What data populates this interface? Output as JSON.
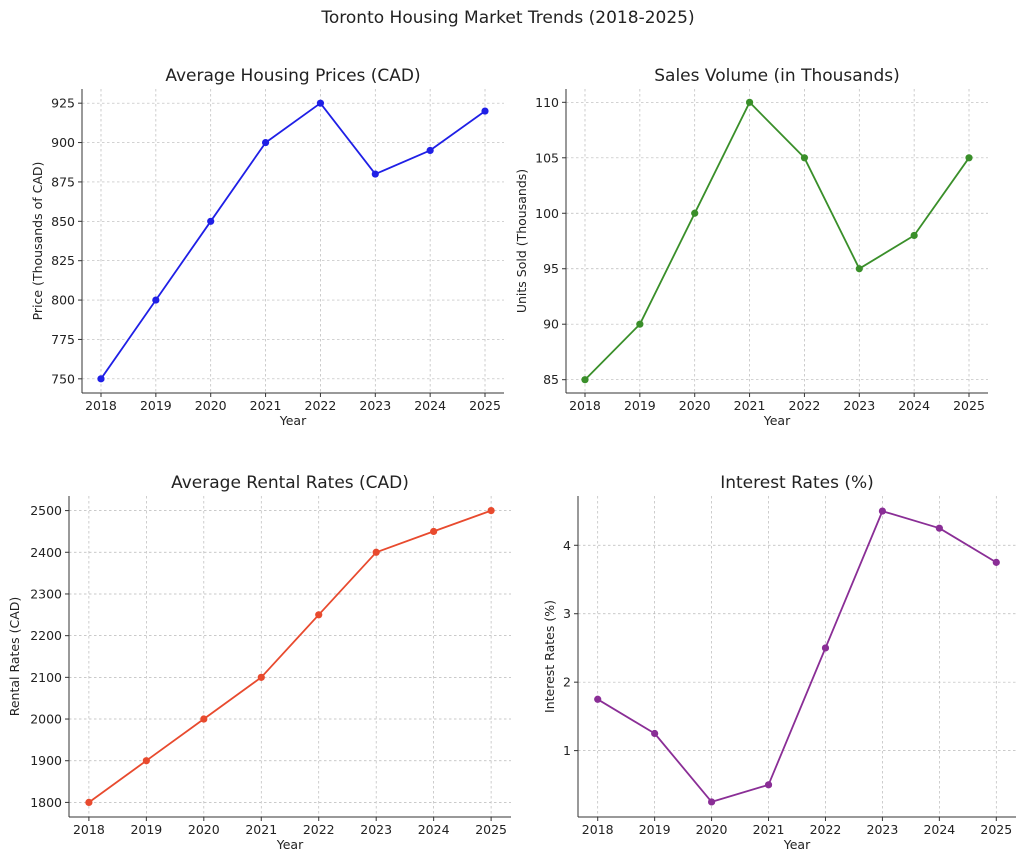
{
  "figure": {
    "title": "Toronto Housing Market Trends (2018-2025)"
  },
  "chart_data": [
    {
      "type": "line",
      "title": "Average Housing Prices (CAD)",
      "xlabel": "Year",
      "ylabel": "Price (Thousands of CAD)",
      "x": [
        "2018",
        "2019",
        "2020",
        "2021",
        "2022",
        "2023",
        "2024",
        "2025"
      ],
      "series": [
        {
          "values": [
            750,
            800,
            850,
            900,
            925,
            880,
            895,
            920
          ],
          "color": "#1f1fe6"
        }
      ],
      "ylim": [
        741,
        934
      ],
      "yticks": [
        750,
        775,
        800,
        825,
        850,
        875,
        900,
        925
      ],
      "grid": true
    },
    {
      "type": "line",
      "title": "Sales Volume (in Thousands)",
      "xlabel": "Year",
      "ylabel": "Units Sold (Thousands)",
      "x": [
        "2018",
        "2019",
        "2020",
        "2021",
        "2022",
        "2023",
        "2024",
        "2025"
      ],
      "series": [
        {
          "values": [
            85,
            90,
            100,
            110,
            105,
            95,
            98,
            105
          ],
          "color": "#3a8f2a"
        }
      ],
      "ylim": [
        83.8,
        111.2
      ],
      "yticks": [
        85,
        90,
        95,
        100,
        105,
        110
      ],
      "grid": true
    },
    {
      "type": "line",
      "title": "Average Rental Rates (CAD)",
      "xlabel": "Year",
      "ylabel": "Rental Rates (CAD)",
      "x": [
        "2018",
        "2019",
        "2020",
        "2021",
        "2022",
        "2023",
        "2024",
        "2025"
      ],
      "series": [
        {
          "values": [
            1800,
            1900,
            2000,
            2100,
            2250,
            2400,
            2450,
            2500
          ],
          "color": "#e84a2e"
        }
      ],
      "ylim": [
        1765,
        2535
      ],
      "yticks": [
        1800,
        1900,
        2000,
        2100,
        2200,
        2300,
        2400,
        2500
      ],
      "grid": true
    },
    {
      "type": "line",
      "title": "Interest Rates (%)",
      "xlabel": "Year",
      "ylabel": "Interest Rates (%)",
      "x": [
        "2018",
        "2019",
        "2020",
        "2021",
        "2022",
        "2023",
        "2024",
        "2025"
      ],
      "series": [
        {
          "values": [
            1.75,
            1.25,
            0.25,
            0.5,
            2.5,
            4.5,
            4.25,
            3.75
          ],
          "color": "#8a2e96"
        }
      ],
      "ylim": [
        0.03,
        4.72
      ],
      "yticks": [
        1,
        2,
        3,
        4
      ],
      "grid": true
    }
  ]
}
